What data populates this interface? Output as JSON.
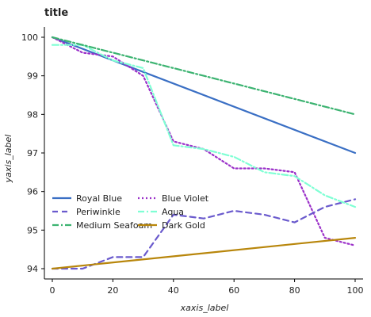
{
  "chart_data": {
    "type": "line",
    "title": "title",
    "xlabel": "xaxis_label",
    "ylabel": "yaxis_label",
    "xlim": [
      0,
      100
    ],
    "ylim": [
      94,
      100
    ],
    "x_ticks": [
      "0",
      "20",
      "40",
      "60",
      "80",
      "100"
    ],
    "y_ticks": [
      "94",
      "95",
      "96",
      "97",
      "98",
      "99",
      "100"
    ],
    "legend_position": "bottom-left, inside plot",
    "grid": false,
    "series": [
      {
        "name": "Royal Blue",
        "color": "#3a6fc4",
        "dash": "solid",
        "x": [
          0,
          100
        ],
        "y": [
          100.0,
          97.0
        ]
      },
      {
        "name": "Blue Violet",
        "color": "#9b30c9",
        "dash": "dotted",
        "x": [
          0,
          10,
          20,
          30,
          40,
          50,
          60,
          70,
          80,
          90,
          100
        ],
        "y": [
          100.0,
          99.6,
          99.5,
          99.0,
          97.3,
          97.1,
          96.6,
          96.6,
          96.5,
          94.8,
          94.6
        ]
      },
      {
        "name": "Periwinkle",
        "color": "#6a5acd",
        "dash": "dashed",
        "x": [
          0,
          10,
          20,
          30,
          40,
          50,
          60,
          70,
          80,
          90,
          100
        ],
        "y": [
          94.0,
          94.0,
          94.3,
          94.3,
          95.4,
          95.3,
          95.5,
          95.4,
          95.2,
          95.6,
          95.8
        ]
      },
      {
        "name": "Aqua",
        "color": "#7fffd4",
        "dash": "dashdot",
        "x": [
          0,
          10,
          20,
          30,
          40,
          50,
          60,
          70,
          80,
          90,
          100
        ],
        "y": [
          99.8,
          99.8,
          99.4,
          99.2,
          97.2,
          97.1,
          96.9,
          96.5,
          96.4,
          95.9,
          95.6
        ]
      },
      {
        "name": "Medium Seafoam",
        "color": "#3cb371",
        "dash": "dashdot",
        "x": [
          0,
          100
        ],
        "y": [
          100.0,
          98.0
        ]
      },
      {
        "name": "Dark Gold",
        "color": "#b8860b",
        "dash": "solid",
        "x": [
          0,
          100
        ],
        "y": [
          94.0,
          94.8
        ]
      }
    ]
  }
}
